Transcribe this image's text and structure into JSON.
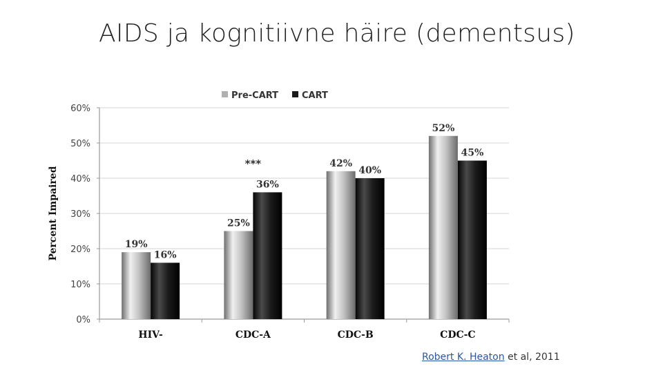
{
  "slide": {
    "title": "AIDS ja kognitiivne häire (dementsus)",
    "citation_link": "Robert K. Heaton",
    "citation_rest": " et al, 2011"
  },
  "chart_data": {
    "type": "bar",
    "categories": [
      "HIV-",
      "CDC-A",
      "CDC-B",
      "CDC-C"
    ],
    "series": [
      {
        "name": "Pre-CART",
        "values": [
          19,
          25,
          42,
          52
        ],
        "labels": [
          "19%",
          "25%",
          "42%",
          "52%"
        ],
        "color": "#b0b0b0"
      },
      {
        "name": "CART",
        "values": [
          16,
          36,
          40,
          45
        ],
        "labels": [
          "16%",
          "36%",
          "40%",
          "45%"
        ],
        "color": "#1a1a1a"
      }
    ],
    "ylabel": "Percent Impaired",
    "ylim": [
      0,
      60
    ],
    "ytick_values": [
      0,
      10,
      20,
      30,
      40,
      50,
      60
    ],
    "ytick_labels": [
      "0%",
      "10%",
      "20%",
      "30%",
      "40%",
      "50%",
      "60%"
    ],
    "grid": true,
    "legend_position": "top",
    "annotations": [
      {
        "text": "***",
        "category": "CDC-A"
      }
    ]
  }
}
